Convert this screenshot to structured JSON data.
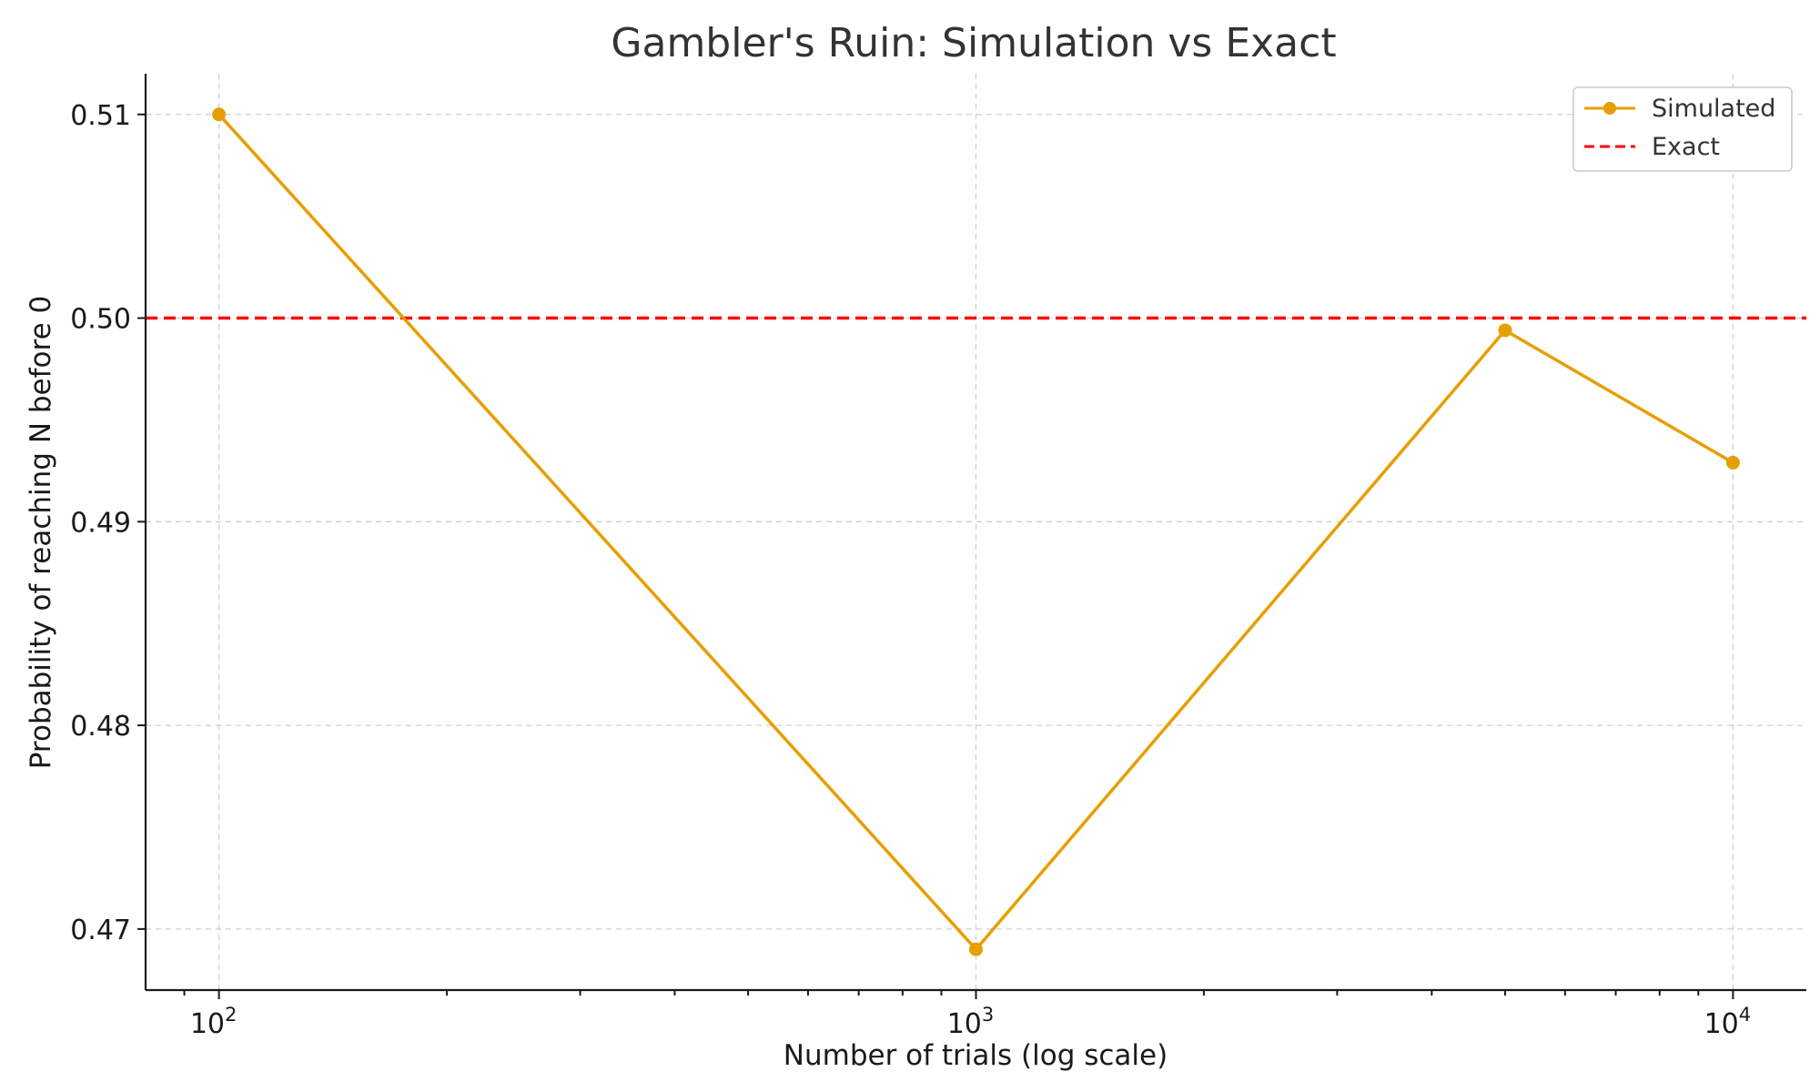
{
  "chart_data": {
    "type": "line",
    "title": "Gambler's Ruin: Simulation vs Exact",
    "xlabel": "Number of trials (log scale)",
    "ylabel": "Probability of reaching N before 0",
    "x_scale": "log",
    "xlim": [
      80,
      12500
    ],
    "ylim": [
      0.467,
      0.512
    ],
    "x_ticks": [
      {
        "value": 100,
        "base": "10",
        "exp": "2"
      },
      {
        "value": 1000,
        "base": "10",
        "exp": "3"
      },
      {
        "value": 10000,
        "base": "10",
        "exp": "4"
      }
    ],
    "y_ticks": [
      {
        "value": 0.47,
        "label": "0.47"
      },
      {
        "value": 0.48,
        "label": "0.48"
      },
      {
        "value": 0.49,
        "label": "0.49"
      },
      {
        "value": 0.5,
        "label": "0.50"
      },
      {
        "value": 0.51,
        "label": "0.51"
      }
    ],
    "grid": true,
    "legend_position": "top-right",
    "series": [
      {
        "name": "Simulated",
        "style": "line-with-markers",
        "color": "#E69F00",
        "points": [
          {
            "x": 100,
            "y": 0.51
          },
          {
            "x": 1000,
            "y": 0.469
          },
          {
            "x": 5000,
            "y": 0.4994
          },
          {
            "x": 10000,
            "y": 0.4929
          }
        ]
      },
      {
        "name": "Exact",
        "style": "dashed-horizontal",
        "color": "#ff0000",
        "y": 0.5
      }
    ]
  }
}
